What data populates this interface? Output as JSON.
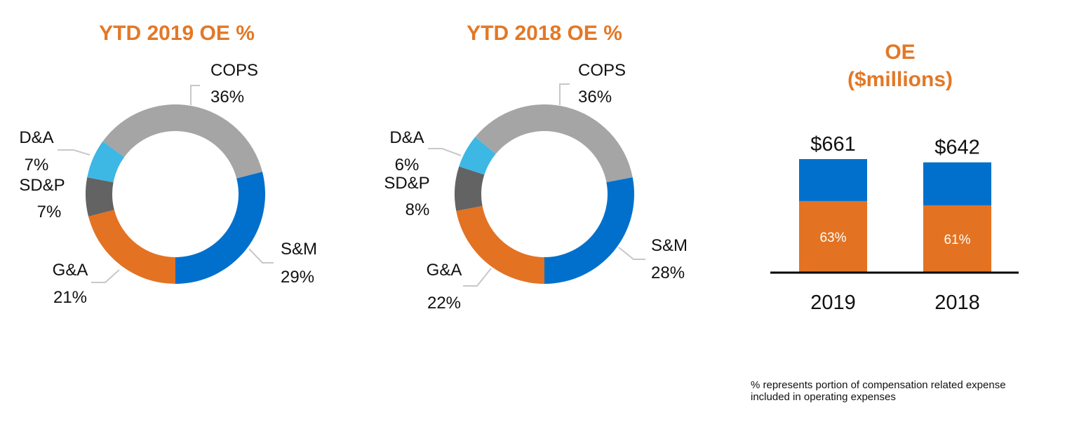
{
  "chart_data": [
    {
      "type": "pie",
      "style": "donut",
      "title": "YTD 2019 OE %",
      "slices": [
        {
          "label": "G&A",
          "value": 21,
          "display": "21%",
          "color": "#E37222"
        },
        {
          "label": "SD&P",
          "value": 7,
          "display": "7%",
          "color": "#636363"
        },
        {
          "label": "D&A",
          "value": 7,
          "display": "7%",
          "color": "#3DB7E4"
        },
        {
          "label": "COPS",
          "value": 36,
          "display": "36%",
          "color": "#A5A5A5"
        },
        {
          "label": "S&M",
          "value": 29,
          "display": "29%",
          "color": "#0070CC"
        }
      ]
    },
    {
      "type": "pie",
      "style": "donut",
      "title": "YTD 2018 OE %",
      "slices": [
        {
          "label": "G&A",
          "value": 22,
          "display": "22%",
          "color": "#E37222"
        },
        {
          "label": "SD&P",
          "value": 8,
          "display": "8%",
          "color": "#636363"
        },
        {
          "label": "D&A",
          "value": 6,
          "display": "6%",
          "color": "#3DB7E4"
        },
        {
          "label": "COPS",
          "value": 36,
          "display": "36%",
          "color": "#A5A5A5"
        },
        {
          "label": "S&M",
          "value": 28,
          "display": "28%",
          "color": "#0070CC"
        }
      ]
    },
    {
      "type": "bar",
      "stacked": true,
      "title_line1": "OE",
      "title_line2": "($millions)",
      "categories": [
        "2019",
        "2018"
      ],
      "totals": [
        661,
        642
      ],
      "total_labels": [
        "$661",
        "$642"
      ],
      "compensation_pct": [
        63,
        61
      ],
      "compensation_labels": [
        "63%",
        "61%"
      ],
      "colors": {
        "compensation": "#E37222",
        "other": "#0070CC"
      },
      "ylim": [
        0,
        661
      ]
    }
  ],
  "footnote": {
    "line1": "% represents portion of compensation related expense",
    "line2": "included in operating expenses"
  }
}
